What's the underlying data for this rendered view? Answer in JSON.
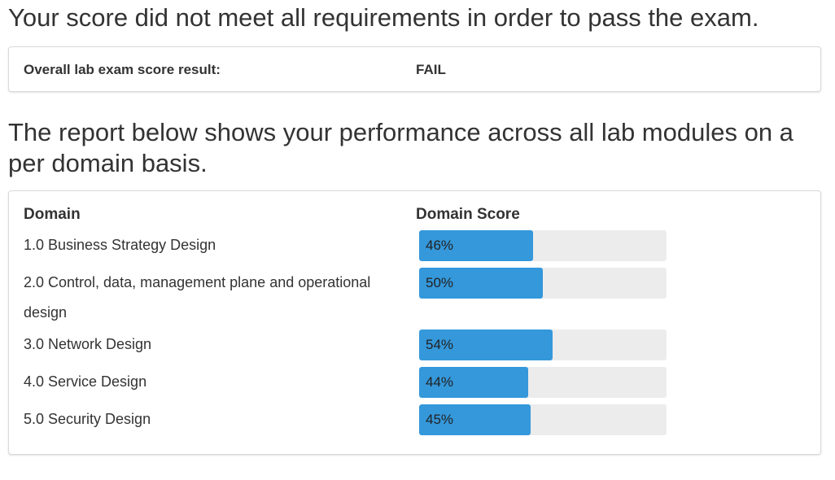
{
  "headline": "Your score did not meet all requirements in order to pass the exam.",
  "result": {
    "label": "Overall lab exam score result:",
    "value": "FAIL"
  },
  "report_intro": "The report below shows your performance across all lab modules on a per domain basis.",
  "table": {
    "col_domain": "Domain",
    "col_score": "Domain Score",
    "rows": [
      {
        "domain": "1.0 Business Strategy Design",
        "score_text": "46%",
        "score": 46
      },
      {
        "domain": "2.0 Control, data, management plane and operational design",
        "score_text": "50%",
        "score": 50
      },
      {
        "domain": "3.0 Network Design",
        "score_text": "54%",
        "score": 54
      },
      {
        "domain": "4.0 Service Design",
        "score_text": "44%",
        "score": 44
      },
      {
        "domain": "5.0 Security Design",
        "score_text": "45%",
        "score": 45
      }
    ]
  },
  "colors": {
    "bar_fill": "#3498db",
    "bar_track": "#ececec"
  }
}
